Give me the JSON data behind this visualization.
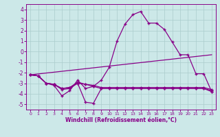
{
  "title": "",
  "xlabel": "Windchill (Refroidissement éolien,°C)",
  "background_color": "#cce8e8",
  "grid_color": "#aacccc",
  "line_color": "#880088",
  "xlim": [
    -0.5,
    23.5
  ],
  "ylim": [
    -5.5,
    4.5
  ],
  "xticks": [
    0,
    1,
    2,
    3,
    4,
    5,
    6,
    7,
    8,
    9,
    10,
    11,
    12,
    13,
    14,
    15,
    16,
    17,
    18,
    19,
    20,
    21,
    22,
    23
  ],
  "yticks": [
    -5,
    -4,
    -3,
    -2,
    -1,
    0,
    1,
    2,
    3,
    4
  ],
  "line1_x": [
    0,
    1,
    2,
    3,
    4,
    5,
    6,
    7,
    8,
    9,
    10,
    11,
    12,
    13,
    14,
    15,
    16,
    17,
    18,
    19,
    20,
    21,
    22,
    23
  ],
  "line1_y": [
    -2.2,
    -2.3,
    -3.0,
    -3.2,
    -4.2,
    -3.7,
    -2.7,
    -3.5,
    -3.3,
    -2.7,
    -1.5,
    1.0,
    2.6,
    3.5,
    3.8,
    2.7,
    2.7,
    2.1,
    0.9,
    -0.3,
    -0.3,
    -2.1,
    -2.1,
    -3.8
  ],
  "line2_x": [
    0,
    1,
    2,
    3,
    4,
    5,
    6,
    7,
    8,
    9,
    10,
    11,
    12,
    13,
    14,
    15,
    16,
    17,
    18,
    19,
    20,
    21,
    22,
    23
  ],
  "line2_y": [
    -2.2,
    -2.3,
    -3.0,
    -3.1,
    -3.6,
    -3.5,
    -3.0,
    -4.8,
    -4.9,
    -3.5,
    -3.5,
    -3.5,
    -3.5,
    -3.5,
    -3.5,
    -3.5,
    -3.5,
    -3.5,
    -3.5,
    -3.5,
    -3.5,
    -3.5,
    -3.5,
    -3.8
  ],
  "line3_x": [
    0,
    1,
    2,
    3,
    4,
    5,
    6,
    7,
    8,
    9,
    10,
    11,
    12,
    13,
    14,
    15,
    16,
    17,
    18,
    19,
    20,
    21,
    22,
    23
  ],
  "line3_y": [
    -2.2,
    -2.3,
    -3.0,
    -3.1,
    -3.5,
    -3.4,
    -2.9,
    -3.1,
    -3.3,
    -3.5,
    -3.5,
    -3.5,
    -3.5,
    -3.5,
    -3.5,
    -3.5,
    -3.5,
    -3.5,
    -3.5,
    -3.5,
    -3.5,
    -3.5,
    -3.5,
    -3.7
  ],
  "line4_x": [
    0,
    1,
    2,
    3,
    4,
    5,
    6,
    7,
    8,
    9,
    10,
    11,
    12,
    13,
    14,
    15,
    16,
    17,
    18,
    19,
    20,
    21,
    22,
    23
  ],
  "line4_y": [
    -2.2,
    -2.3,
    -3.0,
    -3.1,
    -3.5,
    -3.4,
    -3.0,
    -3.1,
    -3.2,
    -3.4,
    -3.4,
    -3.4,
    -3.4,
    -3.4,
    -3.4,
    -3.4,
    -3.4,
    -3.4,
    -3.4,
    -3.4,
    -3.4,
    -3.4,
    -3.4,
    -3.6
  ],
  "trend_x": [
    0,
    23
  ],
  "trend_y": [
    -2.2,
    -0.3
  ],
  "marker": "+"
}
